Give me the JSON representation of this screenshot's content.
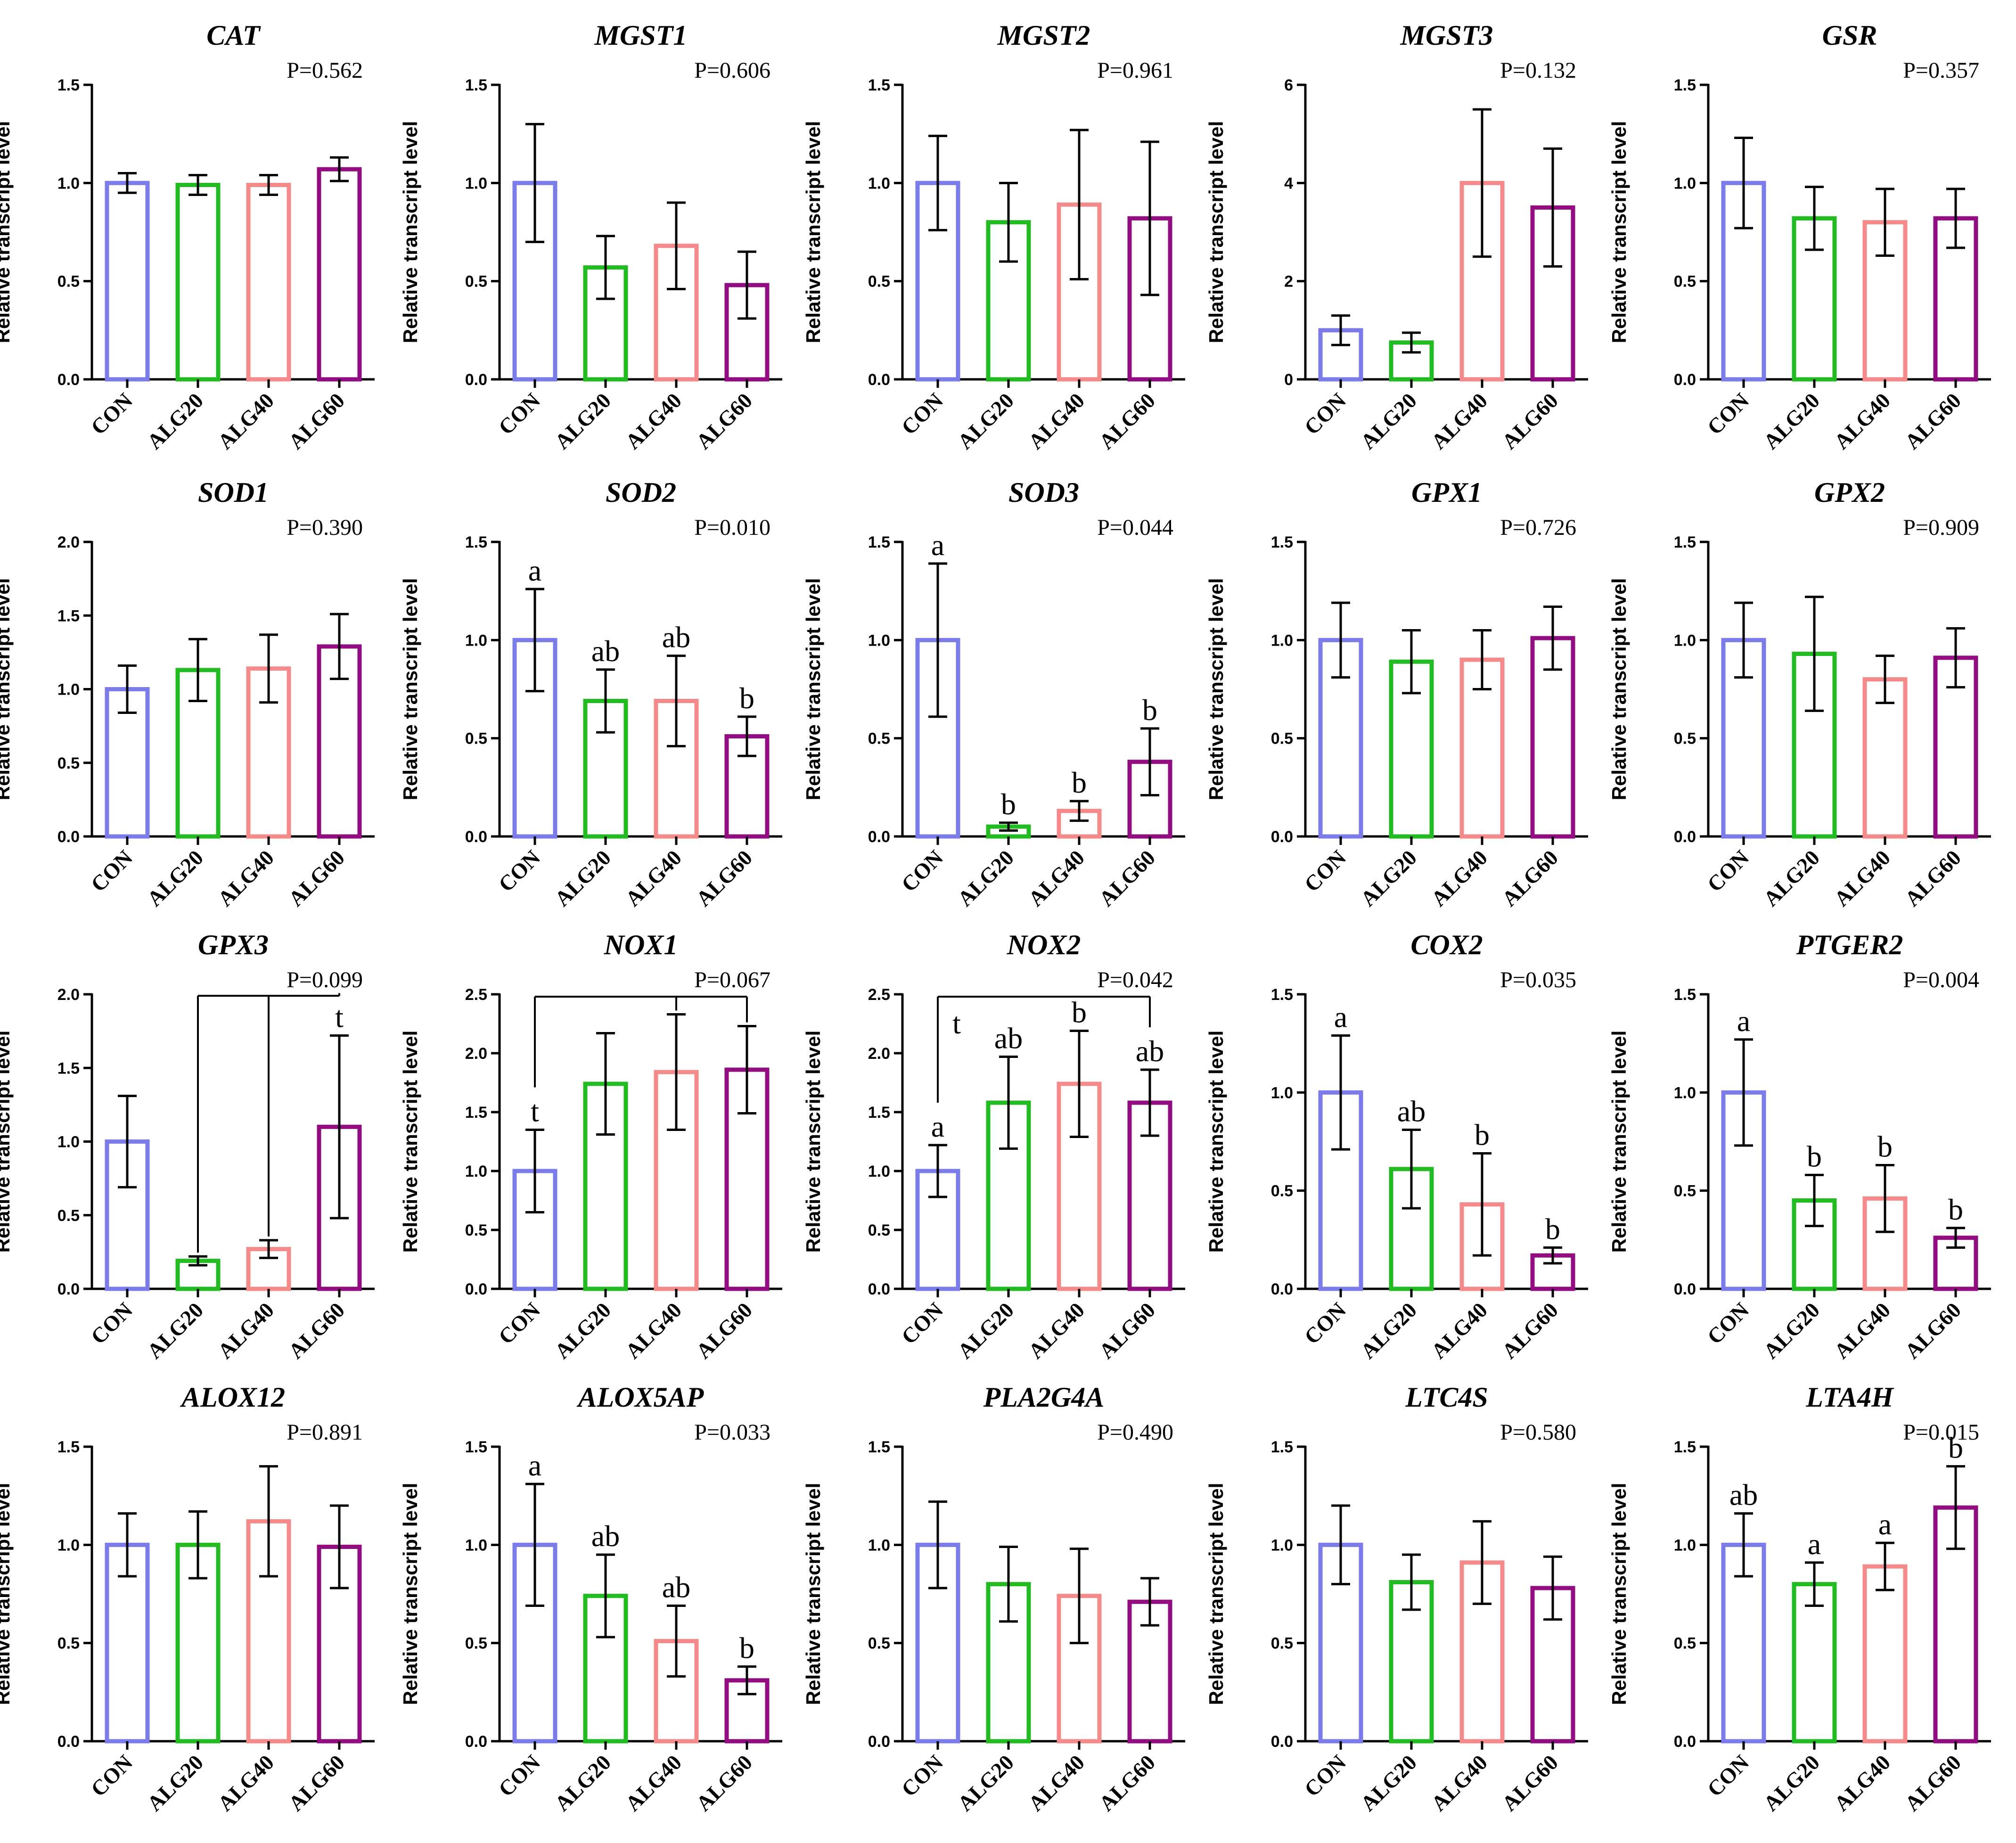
{
  "colors": {
    "CON": "#7b7bea",
    "ALG20": "#22bb22",
    "ALG40": "#f58a8a",
    "ALG60": "#920d80"
  },
  "chart_data": [
    {
      "type": "bar",
      "title": "CAT",
      "p_label": "P=0.562",
      "ylabel": "Relative transcript level",
      "ylim": [
        0,
        1.5
      ],
      "yticks": [
        "0.0",
        "0.5",
        "1.0",
        "1.5"
      ],
      "categories": [
        "CON",
        "ALG20",
        "ALG40",
        "ALG60"
      ],
      "values": [
        1.0,
        0.99,
        0.99,
        1.07
      ],
      "errors": [
        0.05,
        0.05,
        0.05,
        0.06
      ],
      "letters": [],
      "bracket": null
    },
    {
      "type": "bar",
      "title": "MGST1",
      "p_label": "P=0.606",
      "ylabel": "Relative transcript level",
      "ylim": [
        0,
        1.5
      ],
      "yticks": [
        "0.0",
        "0.5",
        "1.0",
        "1.5"
      ],
      "categories": [
        "CON",
        "ALG20",
        "ALG40",
        "ALG60"
      ],
      "values": [
        1.0,
        0.57,
        0.68,
        0.48
      ],
      "errors": [
        0.3,
        0.16,
        0.22,
        0.17
      ],
      "letters": [],
      "bracket": null
    },
    {
      "type": "bar",
      "title": "MGST2",
      "p_label": "P=0.961",
      "ylabel": "Relative transcript level",
      "ylim": [
        0,
        1.5
      ],
      "yticks": [
        "0.0",
        "0.5",
        "1.0",
        "1.5"
      ],
      "categories": [
        "CON",
        "ALG20",
        "ALG40",
        "ALG60"
      ],
      "values": [
        1.0,
        0.8,
        0.89,
        0.82
      ],
      "errors": [
        0.24,
        0.2,
        0.38,
        0.39
      ],
      "letters": [],
      "bracket": null
    },
    {
      "type": "bar",
      "title": "MGST3",
      "p_label": "P=0.132",
      "ylabel": "Relative transcript level",
      "ylim": [
        0,
        6
      ],
      "yticks": [
        "0",
        "2",
        "4",
        "6"
      ],
      "categories": [
        "CON",
        "ALG20",
        "ALG40",
        "ALG60"
      ],
      "values": [
        1.0,
        0.75,
        4.0,
        3.5
      ],
      "errors": [
        0.3,
        0.2,
        1.5,
        1.2
      ],
      "letters": [],
      "bracket": null
    },
    {
      "type": "bar",
      "title": "GSR",
      "p_label": "P=0.357",
      "ylabel": "Relative transcript level",
      "ylim": [
        0,
        1.5
      ],
      "yticks": [
        "0.0",
        "0.5",
        "1.0",
        "1.5"
      ],
      "categories": [
        "CON",
        "ALG20",
        "ALG40",
        "ALG60"
      ],
      "values": [
        1.0,
        0.82,
        0.8,
        0.82
      ],
      "errors": [
        0.23,
        0.16,
        0.17,
        0.15
      ],
      "letters": [],
      "bracket": null
    },
    {
      "type": "bar",
      "title": "SOD1",
      "p_label": "P=0.390",
      "ylabel": "Relative transcript level",
      "ylim": [
        0,
        2.0
      ],
      "yticks": [
        "0.0",
        "0.5",
        "1.0",
        "1.5",
        "2.0"
      ],
      "categories": [
        "CON",
        "ALG20",
        "ALG40",
        "ALG60"
      ],
      "values": [
        1.0,
        1.13,
        1.14,
        1.29
      ],
      "errors": [
        0.16,
        0.21,
        0.23,
        0.22
      ],
      "letters": [],
      "bracket": null
    },
    {
      "type": "bar",
      "title": "SOD2",
      "p_label": "P=0.010",
      "ylabel": "Relative transcript level",
      "ylim": [
        0,
        1.5
      ],
      "yticks": [
        "0.0",
        "0.5",
        "1.0",
        "1.5"
      ],
      "categories": [
        "CON",
        "ALG20",
        "ALG40",
        "ALG60"
      ],
      "values": [
        1.0,
        0.69,
        0.69,
        0.51
      ],
      "errors": [
        0.26,
        0.16,
        0.23,
        0.1
      ],
      "letters": [
        "a",
        "ab",
        "ab",
        "b"
      ],
      "bracket": null
    },
    {
      "type": "bar",
      "title": "SOD3",
      "p_label": "P=0.044",
      "ylabel": "Relative transcript level",
      "ylim": [
        0,
        1.5
      ],
      "yticks": [
        "0.0",
        "0.5",
        "1.0",
        "1.5"
      ],
      "categories": [
        "CON",
        "ALG20",
        "ALG40",
        "ALG60"
      ],
      "values": [
        1.0,
        0.05,
        0.13,
        0.38
      ],
      "errors": [
        0.39,
        0.02,
        0.05,
        0.17
      ],
      "letters": [
        "a",
        "b",
        "b",
        "b"
      ],
      "bracket": null
    },
    {
      "type": "bar",
      "title": "GPX1",
      "p_label": "P=0.726",
      "ylabel": "Relative transcript level",
      "ylim": [
        0,
        1.5
      ],
      "yticks": [
        "0.0",
        "0.5",
        "1.0",
        "1.5"
      ],
      "categories": [
        "CON",
        "ALG20",
        "ALG40",
        "ALG60"
      ],
      "values": [
        1.0,
        0.89,
        0.9,
        1.01
      ],
      "errors": [
        0.19,
        0.16,
        0.15,
        0.16
      ],
      "letters": [],
      "bracket": null
    },
    {
      "type": "bar",
      "title": "GPX2",
      "p_label": "P=0.909",
      "ylabel": "Relative transcript level",
      "ylim": [
        0,
        1.5
      ],
      "yticks": [
        "0.0",
        "0.5",
        "1.0",
        "1.5"
      ],
      "categories": [
        "CON",
        "ALG20",
        "ALG40",
        "ALG60"
      ],
      "values": [
        1.0,
        0.93,
        0.8,
        0.91
      ],
      "errors": [
        0.19,
        0.29,
        0.12,
        0.15
      ],
      "letters": [],
      "bracket": null
    },
    {
      "type": "bar",
      "title": "GPX3",
      "p_label": "P=0.099",
      "ylabel": "Relative transcript level",
      "ylim": [
        0,
        2.0
      ],
      "yticks": [
        "0.0",
        "0.5",
        "1.0",
        "1.5",
        "2.0"
      ],
      "categories": [
        "CON",
        "ALG20",
        "ALG40",
        "ALG60"
      ],
      "values": [
        1.0,
        0.19,
        0.27,
        1.1
      ],
      "errors": [
        0.31,
        0.03,
        0.06,
        0.62
      ],
      "letters": [
        "",
        "",
        "",
        "t"
      ],
      "bracket": {
        "from": 1,
        "to": 3,
        "mid": 2,
        "level": 1.99
      }
    },
    {
      "type": "bar",
      "title": "NOX1",
      "p_label": "P=0.067",
      "ylabel": "Relative transcript level",
      "ylim": [
        0,
        2.5
      ],
      "yticks": [
        "0.0",
        "0.5",
        "1.0",
        "1.5",
        "2.0",
        "2.5"
      ],
      "categories": [
        "CON",
        "ALG20",
        "ALG40",
        "ALG60"
      ],
      "values": [
        1.0,
        1.74,
        1.84,
        1.86
      ],
      "errors": [
        0.35,
        0.43,
        0.49,
        0.37
      ],
      "letters": [
        "t",
        "",
        "",
        ""
      ],
      "bracket": {
        "from": 0,
        "to": 3,
        "mid": 2,
        "level": 2.48
      }
    },
    {
      "type": "bar",
      "title": "NOX2",
      "p_label": "P=0.042",
      "ylabel": "Relative transcript level",
      "ylim": [
        0,
        2.5
      ],
      "yticks": [
        "0.0",
        "0.5",
        "1.0",
        "1.5",
        "2.0",
        "2.5"
      ],
      "categories": [
        "CON",
        "ALG20",
        "ALG40",
        "ALG60"
      ],
      "values": [
        1.0,
        1.58,
        1.74,
        1.58
      ],
      "errors": [
        0.22,
        0.39,
        0.45,
        0.28
      ],
      "letters": [
        "a",
        "ab",
        "b",
        "ab"
      ],
      "bracket": {
        "from": 0,
        "to": 3,
        "mid": null,
        "level": 2.48
      },
      "bracket_label": "t"
    },
    {
      "type": "bar",
      "title": "COX2",
      "p_label": "P=0.035",
      "ylabel": "Relative transcript level",
      "ylim": [
        0,
        1.5
      ],
      "yticks": [
        "0.0",
        "0.5",
        "1.0",
        "1.5"
      ],
      "categories": [
        "CON",
        "ALG20",
        "ALG40",
        "ALG60"
      ],
      "values": [
        1.0,
        0.61,
        0.43,
        0.17
      ],
      "errors": [
        0.29,
        0.2,
        0.26,
        0.04
      ],
      "letters": [
        "a",
        "ab",
        "b",
        "b"
      ],
      "bracket": null
    },
    {
      "type": "bar",
      "title": "PTGER2",
      "p_label": "P=0.004",
      "ylabel": "Relative transcript level",
      "ylim": [
        0,
        1.5
      ],
      "yticks": [
        "0.0",
        "0.5",
        "1.0",
        "1.5"
      ],
      "categories": [
        "CON",
        "ALG20",
        "ALG40",
        "ALG60"
      ],
      "values": [
        1.0,
        0.45,
        0.46,
        0.26
      ],
      "errors": [
        0.27,
        0.13,
        0.17,
        0.05
      ],
      "letters": [
        "a",
        "b",
        "b",
        "b"
      ],
      "bracket": null
    },
    {
      "type": "bar",
      "title": "ALOX12",
      "p_label": "P=0.891",
      "ylabel": "Relative transcript level",
      "ylim": [
        0,
        1.5
      ],
      "yticks": [
        "0.0",
        "0.5",
        "1.0",
        "1.5"
      ],
      "categories": [
        "CON",
        "ALG20",
        "ALG40",
        "ALG60"
      ],
      "values": [
        1.0,
        1.0,
        1.12,
        0.99
      ],
      "errors": [
        0.16,
        0.17,
        0.28,
        0.21
      ],
      "letters": [],
      "bracket": null
    },
    {
      "type": "bar",
      "title": "ALOX5AP",
      "p_label": "P=0.033",
      "ylabel": "Relative transcript level",
      "ylim": [
        0,
        1.5
      ],
      "yticks": [
        "0.0",
        "0.5",
        "1.0",
        "1.5"
      ],
      "categories": [
        "CON",
        "ALG20",
        "ALG40",
        "ALG60"
      ],
      "values": [
        1.0,
        0.74,
        0.51,
        0.31
      ],
      "errors": [
        0.31,
        0.21,
        0.18,
        0.07
      ],
      "letters": [
        "a",
        "ab",
        "ab",
        "b"
      ],
      "bracket": null
    },
    {
      "type": "bar",
      "title": "PLA2G4A",
      "p_label": "P=0.490",
      "ylabel": "Relative transcript level",
      "ylim": [
        0,
        1.5
      ],
      "yticks": [
        "0.0",
        "0.5",
        "1.0",
        "1.5"
      ],
      "categories": [
        "CON",
        "ALG20",
        "ALG40",
        "ALG60"
      ],
      "values": [
        1.0,
        0.8,
        0.74,
        0.71
      ],
      "errors": [
        0.22,
        0.19,
        0.24,
        0.12
      ],
      "letters": [],
      "bracket": null
    },
    {
      "type": "bar",
      "title": "LTC4S",
      "p_label": "P=0.580",
      "ylabel": "Relative transcript level",
      "ylim": [
        0,
        1.5
      ],
      "yticks": [
        "0.0",
        "0.5",
        "1.0",
        "1.5"
      ],
      "categories": [
        "CON",
        "ALG20",
        "ALG40",
        "ALG60"
      ],
      "values": [
        1.0,
        0.81,
        0.91,
        0.78
      ],
      "errors": [
        0.2,
        0.14,
        0.21,
        0.16
      ],
      "letters": [],
      "bracket": null
    },
    {
      "type": "bar",
      "title": "LTA4H",
      "p_label": "P=0.015",
      "ylabel": "Relative transcript level",
      "ylim": [
        0,
        1.5
      ],
      "yticks": [
        "0.0",
        "0.5",
        "1.0",
        "1.5"
      ],
      "categories": [
        "CON",
        "ALG20",
        "ALG40",
        "ALG60"
      ],
      "values": [
        1.0,
        0.8,
        0.89,
        1.19
      ],
      "errors": [
        0.16,
        0.11,
        0.12,
        0.21
      ],
      "letters": [
        "ab",
        "a",
        "a",
        "b"
      ],
      "bracket": null
    }
  ]
}
